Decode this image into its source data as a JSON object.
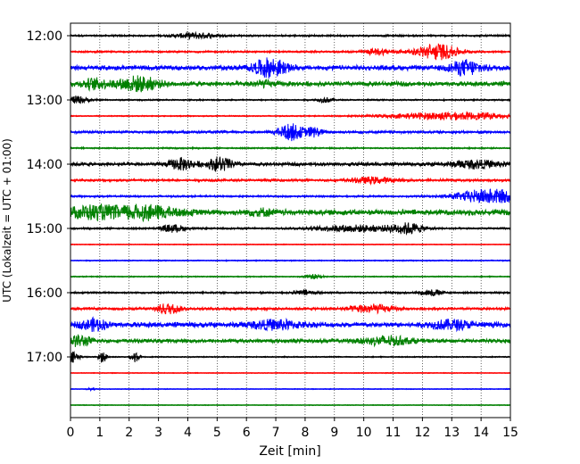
{
  "chart_data": {
    "type": "line",
    "subtype": "helicorder",
    "xlabel": "Zeit  [min]",
    "ylabel": "UTC (Lokalzeit = UTC + 01:00)",
    "xlim": [
      0,
      15
    ],
    "x_ticks": [
      "0",
      "1",
      "2",
      "3",
      "4",
      "5",
      "6",
      "7",
      "8",
      "9",
      "10",
      "11",
      "12",
      "13",
      "14",
      "15"
    ],
    "x_grid": true,
    "y_tick_labels": [
      "12:00",
      "13:00",
      "14:00",
      "15:00",
      "16:00",
      "17:00"
    ],
    "trace_interval_min": 15,
    "trace_count": 24,
    "trace_colors": [
      "#000000",
      "#ff0000",
      "#0000ff",
      "#008000"
    ],
    "rows": [
      {
        "start": "12:00",
        "noise": 0.25,
        "events": [
          [
            4.3,
            0.6,
            0.5
          ]
        ]
      },
      {
        "start": "12:15",
        "noise": 0.25,
        "events": [
          [
            10.5,
            0.6,
            0.4
          ],
          [
            12.5,
            1.8,
            0.5
          ]
        ]
      },
      {
        "start": "12:30",
        "noise": 0.6,
        "events": [
          [
            6.8,
            2.0,
            0.4
          ],
          [
            13.5,
            1.5,
            0.4
          ]
        ]
      },
      {
        "start": "12:45",
        "noise": 0.6,
        "events": [
          [
            0.8,
            1.0,
            0.3
          ],
          [
            2.3,
            1.5,
            0.5
          ],
          [
            6.5,
            0.5,
            0.3
          ]
        ]
      },
      {
        "start": "13:00",
        "noise": 0.2,
        "events": [
          [
            0.2,
            0.8,
            0.3
          ],
          [
            8.7,
            0.5,
            0.2
          ]
        ]
      },
      {
        "start": "13:15",
        "noise": 0.15,
        "events": [
          [
            13.0,
            0.8,
            1.6
          ]
        ]
      },
      {
        "start": "13:30",
        "noise": 0.35,
        "events": [
          [
            7.5,
            1.8,
            0.3
          ],
          [
            8.3,
            1.0,
            0.2
          ]
        ]
      },
      {
        "start": "13:45",
        "noise": 0.2,
        "events": []
      },
      {
        "start": "14:00",
        "noise": 0.45,
        "events": [
          [
            3.8,
            1.2,
            0.3
          ],
          [
            5.1,
            1.5,
            0.3
          ],
          [
            13.8,
            0.8,
            0.6
          ]
        ]
      },
      {
        "start": "14:15",
        "noise": 0.35,
        "events": [
          [
            10.3,
            0.6,
            0.5
          ]
        ]
      },
      {
        "start": "14:30",
        "noise": 0.25,
        "events": [
          [
            14.3,
            1.6,
            0.8
          ]
        ]
      },
      {
        "start": "14:45",
        "noise": 0.7,
        "events": [
          [
            0.7,
            1.2,
            0.6
          ],
          [
            2.5,
            1.4,
            0.8
          ],
          [
            6.5,
            0.6,
            0.3
          ]
        ]
      },
      {
        "start": "15:00",
        "noise": 0.25,
        "events": [
          [
            3.5,
            0.8,
            0.3
          ],
          [
            9.7,
            0.7,
            1.0
          ],
          [
            11.5,
            1.1,
            0.4
          ]
        ]
      },
      {
        "start": "15:15",
        "noise": 0.1,
        "events": []
      },
      {
        "start": "15:30",
        "noise": 0.15,
        "events": []
      },
      {
        "start": "15:45",
        "noise": 0.15,
        "events": [
          [
            8.3,
            0.5,
            0.2
          ]
        ]
      },
      {
        "start": "16:00",
        "noise": 0.25,
        "events": [
          [
            8.0,
            0.5,
            0.3
          ],
          [
            12.3,
            0.6,
            0.3
          ]
        ]
      },
      {
        "start": "16:15",
        "noise": 0.35,
        "events": [
          [
            3.3,
            1.1,
            0.3
          ],
          [
            10.2,
            0.9,
            0.5
          ]
        ]
      },
      {
        "start": "16:30",
        "noise": 0.65,
        "events": [
          [
            0.8,
            1.2,
            0.3
          ],
          [
            7.0,
            0.9,
            0.6
          ],
          [
            13.0,
            0.9,
            0.5
          ]
        ]
      },
      {
        "start": "16:45",
        "noise": 0.5,
        "events": [
          [
            0.3,
            1.1,
            0.3
          ],
          [
            10.8,
            0.9,
            0.6
          ]
        ]
      },
      {
        "start": "17:00",
        "noise": 0.15,
        "events": [
          [
            0.1,
            1.2,
            0.15
          ],
          [
            1.1,
            1.2,
            0.1
          ],
          [
            2.2,
            1.2,
            0.1
          ]
        ]
      },
      {
        "start": "17:15",
        "noise": 0.1,
        "events": []
      },
      {
        "start": "17:30",
        "noise": 0.1,
        "events": [
          [
            0.7,
            0.3,
            0.1
          ]
        ]
      },
      {
        "start": "17:45",
        "noise": 0.1,
        "events": []
      }
    ]
  }
}
